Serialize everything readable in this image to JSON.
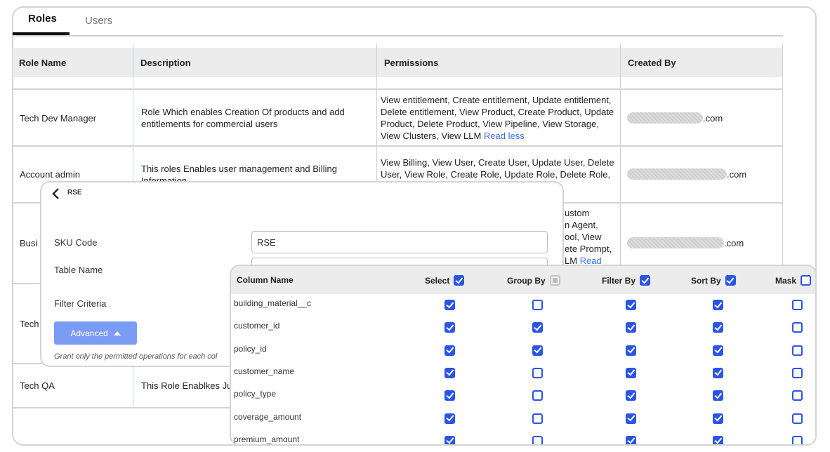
{
  "tabs": [
    {
      "label": "Roles",
      "active": true
    },
    {
      "label": "Users",
      "active": false
    }
  ],
  "table": {
    "headers": [
      "Role Name",
      "Description",
      "Permissions",
      "Created By"
    ],
    "rows": [
      {
        "name": "Tech Dev Manager",
        "description": "Role Which enables Creation Of products and add entitlements for commercial users",
        "permissions": "View entitlement, Create entitlement, Update entitlement, Delete entitlement, View Product, Create Product, Update Product, Delete Product, View Pipeline, View Storage, View Clusters, View LLM",
        "permissions_link": "Read less",
        "created_by_suffix": ".com"
      },
      {
        "name": "Account admin",
        "description": "This roles Enables user management and Billing Information",
        "permissions": "View Billing, View User, Create User, Update User, Delete User, View Role, Create Role, Update Role, Delete Role,",
        "created_by_suffix": ".com"
      },
      {
        "name": "Busi",
        "permissions_lines": [
          "ustom",
          "n Agent,",
          "ool, View",
          "ete Prompt,",
          "LM"
        ],
        "permissions_link": "Read",
        "created_by_suffix": ".com"
      },
      {
        "name": "Tech"
      },
      {
        "name": "Tech QA",
        "description": "This Role Enablkes Ju"
      }
    ]
  },
  "modal": {
    "title": "RSE",
    "sku_label": "SKU Code",
    "sku_value": "RSE",
    "table_label": "Table Name",
    "filter_label": "Filter Criteria",
    "advanced_label": "Advanced",
    "helper": "Grant only the permitted operations for each col"
  },
  "columns_panel": {
    "headers": {
      "name": "Column Name",
      "select": "Select",
      "group_by": "Group By",
      "filter_by": "Filter By",
      "sort_by": "Sort By",
      "mask": "Mask"
    },
    "header_state": {
      "select": "checked",
      "group_by": "indeterminate",
      "filter_by": "checked",
      "sort_by": "checked",
      "mask": "unchecked"
    },
    "rows": [
      {
        "name": "building_material__c",
        "select": true,
        "group_by": false,
        "filter_by": true,
        "sort_by": true,
        "mask": false
      },
      {
        "name": "customer_id",
        "select": true,
        "group_by": true,
        "filter_by": true,
        "sort_by": true,
        "mask": false
      },
      {
        "name": "policy_id",
        "select": true,
        "group_by": true,
        "filter_by": true,
        "sort_by": true,
        "mask": false
      },
      {
        "name": "customer_name",
        "select": true,
        "group_by": false,
        "filter_by": true,
        "sort_by": true,
        "mask": false
      },
      {
        "name": "policy_type",
        "select": true,
        "group_by": false,
        "filter_by": true,
        "sort_by": true,
        "mask": false
      },
      {
        "name": "coverage_amount",
        "select": true,
        "group_by": false,
        "filter_by": true,
        "sort_by": true,
        "mask": false
      },
      {
        "name": "premium_amount",
        "select": true,
        "group_by": false,
        "filter_by": true,
        "sort_by": true,
        "mask": false
      }
    ]
  },
  "colors": {
    "accent": "#2a55e8",
    "advanced_button": "#7b9cf5",
    "link": "#3b6ff5",
    "header_bg": "#ececec"
  }
}
